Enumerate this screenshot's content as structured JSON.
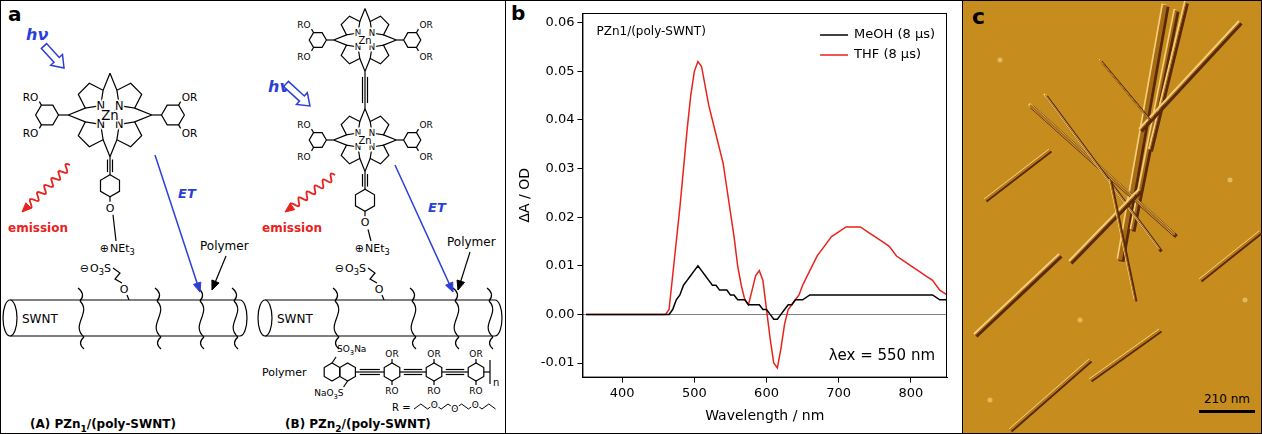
{
  "chart_data": {
    "type": "line",
    "panel_label": "b",
    "x_label": "Wavelength / nm",
    "y_label": "ΔA / OD",
    "annotations": [
      "PZn1/(poly-SWNT)",
      "λex = 550 nm"
    ],
    "x": [
      350,
      360,
      370,
      380,
      390,
      400,
      410,
      420,
      430,
      440,
      450,
      460,
      465,
      470,
      475,
      480,
      485,
      490,
      495,
      500,
      505,
      510,
      515,
      520,
      525,
      530,
      535,
      540,
      545,
      550,
      555,
      560,
      565,
      570,
      575,
      580,
      585,
      590,
      595,
      600,
      605,
      610,
      615,
      620,
      625,
      630,
      635,
      640,
      645,
      650,
      660,
      670,
      680,
      690,
      700,
      710,
      720,
      730,
      740,
      750,
      760,
      770,
      780,
      790,
      800,
      810,
      820,
      830,
      840,
      850
    ],
    "series": [
      {
        "name": "MeOH (8 μs)",
        "color": "#000000",
        "values": [
          0,
          0,
          0,
          0,
          0,
          0,
          0,
          0,
          0,
          0,
          0,
          0,
          0,
          0.001,
          0.003,
          0.004,
          0.006,
          0.007,
          0.008,
          0.009,
          0.01,
          0.009,
          0.008,
          0.007,
          0.006,
          0.006,
          0.005,
          0.005,
          0.005,
          0.004,
          0.004,
          0.003,
          0.003,
          0.003,
          0.002,
          0.002,
          0.002,
          0.002,
          0.001,
          0.001,
          0,
          -0.001,
          -0.001,
          0,
          0.001,
          0.002,
          0.002,
          0.003,
          0.003,
          0.003,
          0.004,
          0.004,
          0.004,
          0.004,
          0.004,
          0.004,
          0.004,
          0.004,
          0.004,
          0.004,
          0.004,
          0.004,
          0.004,
          0.004,
          0.004,
          0.004,
          0.004,
          0.004,
          0.003,
          0.003
        ]
      },
      {
        "name": "THF (8 μs)",
        "color": "#e8221c",
        "values": [
          0,
          0,
          0,
          0,
          0,
          0,
          0,
          0,
          0,
          0,
          0,
          0,
          0.001,
          0.008,
          0.015,
          0.022,
          0.03,
          0.038,
          0.045,
          0.05,
          0.052,
          0.051,
          0.047,
          0.043,
          0.04,
          0.037,
          0.034,
          0.031,
          0.026,
          0.021,
          0.016,
          0.01,
          0.006,
          0.003,
          0.002,
          0.005,
          0.008,
          0.009,
          0.007,
          0.001,
          -0.005,
          -0.01,
          -0.011,
          -0.007,
          -0.002,
          0.001,
          0.002,
          0.003,
          0.004,
          0.006,
          0.009,
          0.012,
          0.014,
          0.016,
          0.017,
          0.018,
          0.018,
          0.018,
          0.017,
          0.016,
          0.015,
          0.014,
          0.012,
          0.011,
          0.01,
          0.009,
          0.008,
          0.007,
          0.005,
          0.004
        ]
      }
    ],
    "xlim": [
      345,
      850
    ],
    "xticks": [
      400,
      500,
      600,
      700,
      800
    ],
    "ylim": [
      -0.013,
      0.062
    ],
    "yticks": [
      {
        "value": -0.01,
        "label": "-0.01"
      },
      {
        "value": 0,
        "label": "0.00"
      },
      {
        "value": 0.01,
        "label": "0.01"
      },
      {
        "value": 0.02,
        "label": "0.02"
      },
      {
        "value": 0.03,
        "label": "0.03"
      },
      {
        "value": 0.04,
        "label": "0.04"
      },
      {
        "value": 0.05,
        "label": "0.05"
      },
      {
        "value": 0.06,
        "label": "0.06"
      }
    ],
    "grid": false,
    "legend": "upper right"
  },
  "diagram": {
    "label": "a",
    "excitation": "hν",
    "emission": "emission",
    "transfer": "ET",
    "polymer_label": "Polymer",
    "tube_label": "SWNT",
    "atoms": {
      "nitrogen": "N",
      "zinc": "Zn",
      "oxygen": "O",
      "alkoxy_left": "RO",
      "alkoxy_right": "OR"
    },
    "linker": {
      "cation": "⊕",
      "ammonium": "NEt3",
      "anion": "⊖",
      "sulfonate": "O3S"
    },
    "structures": [
      {
        "caption": "(A) PZn1/(poly-SWNT)",
        "porphyrins": 1
      },
      {
        "caption": "(B) PZn2/(poly-SWNT)",
        "porphyrins": 2
      }
    ],
    "polymer_structure": {
      "sulfonate_top": "SO3Na",
      "sulfonate_bottom": "NaO3S",
      "side_group_top": "OR",
      "side_group_bottom": "RO",
      "repeat": "n",
      "r_definition": "R ="
    }
  },
  "image": {
    "label": "c",
    "scale_bar": "210 nm"
  }
}
